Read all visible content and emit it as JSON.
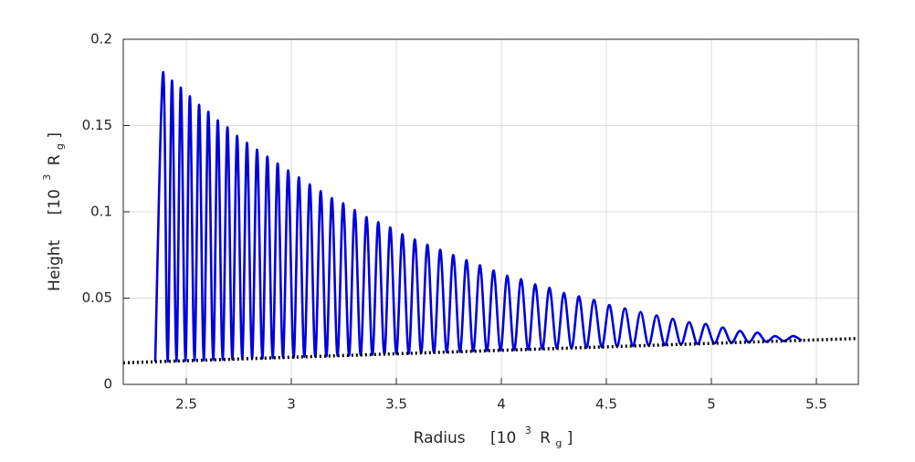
{
  "chart_data": {
    "type": "line",
    "xlabel": {
      "name": "Radius",
      "open": "[10",
      "exp": "3",
      "sym": "R",
      "sub": "g",
      "close": "]"
    },
    "ylabel": {
      "name": "Height",
      "open": "[10",
      "exp": "3",
      "sym": "R",
      "sub": "g",
      "close": "]"
    },
    "xlim": [
      2.2,
      5.7
    ],
    "xticks": [
      2.5,
      3,
      3.5,
      4,
      4.5,
      5,
      5.5
    ],
    "ylim": [
      0,
      0.2
    ],
    "yticks": [
      0,
      0.05,
      0.1,
      0.15,
      0.2
    ],
    "grid": true,
    "series": [
      {
        "color": "#0000dd",
        "style": "solid",
        "x": [
          2.352,
          2.39,
          2.411,
          2.432,
          2.453,
          2.474,
          2.496,
          2.517,
          2.539,
          2.561,
          2.583,
          2.605,
          2.628,
          2.65,
          2.673,
          2.696,
          2.719,
          2.742,
          2.766,
          2.789,
          2.813,
          2.837,
          2.862,
          2.886,
          2.911,
          2.935,
          2.96,
          2.985,
          3.011,
          3.036,
          3.062,
          3.088,
          3.114,
          3.14,
          3.167,
          3.193,
          3.22,
          3.247,
          3.275,
          3.302,
          3.33,
          3.358,
          3.386,
          3.414,
          3.443,
          3.471,
          3.5,
          3.529,
          3.559,
          3.588,
          3.618,
          3.648,
          3.679,
          3.709,
          3.74,
          3.771,
          3.803,
          3.834,
          3.866,
          3.898,
          3.931,
          3.963,
          3.996,
          4.028,
          4.061,
          4.094,
          4.128,
          4.161,
          4.195,
          4.229,
          4.264,
          4.298,
          4.334,
          4.369,
          4.405,
          4.441,
          4.478,
          4.514,
          4.551,
          4.588,
          4.626,
          4.663,
          4.701,
          4.739,
          4.778,
          4.816,
          4.855,
          4.894,
          4.934,
          4.973,
          5.014,
          5.054,
          5.095,
          5.136,
          5.178,
          5.219,
          5.261,
          5.303,
          5.346,
          5.389,
          5.43
        ],
        "y": [
          0.0131,
          0.181,
          0.0133,
          0.176,
          0.0135,
          0.172,
          0.0137,
          0.167,
          0.0139,
          0.162,
          0.014,
          0.158,
          0.0142,
          0.153,
          0.0144,
          0.149,
          0.0146,
          0.144,
          0.0148,
          0.14,
          0.015,
          0.136,
          0.0151,
          0.132,
          0.0153,
          0.128,
          0.0155,
          0.124,
          0.0157,
          0.12,
          0.016,
          0.116,
          0.0162,
          0.112,
          0.0164,
          0.108,
          0.0166,
          0.105,
          0.0168,
          0.101,
          0.017,
          0.097,
          0.0172,
          0.094,
          0.0175,
          0.091,
          0.0177,
          0.087,
          0.0179,
          0.084,
          0.0182,
          0.081,
          0.0184,
          0.078,
          0.0187,
          0.075,
          0.0189,
          0.072,
          0.0192,
          0.069,
          0.0194,
          0.066,
          0.0197,
          0.063,
          0.0199,
          0.061,
          0.0202,
          0.058,
          0.0205,
          0.056,
          0.0208,
          0.053,
          0.021,
          0.051,
          0.0213,
          0.049,
          0.0216,
          0.046,
          0.0219,
          0.044,
          0.0222,
          0.042,
          0.0225,
          0.04,
          0.0228,
          0.038,
          0.0231,
          0.036,
          0.0234,
          0.035,
          0.0238,
          0.033,
          0.0241,
          0.031,
          0.0244,
          0.03,
          0.0247,
          0.028,
          0.0251,
          0.028,
          0.0254
        ]
      },
      {
        "color": "#000000",
        "style": "dotted",
        "x": [
          2.2,
          5.7
        ],
        "y": [
          0.0125,
          0.0266
        ]
      }
    ]
  }
}
